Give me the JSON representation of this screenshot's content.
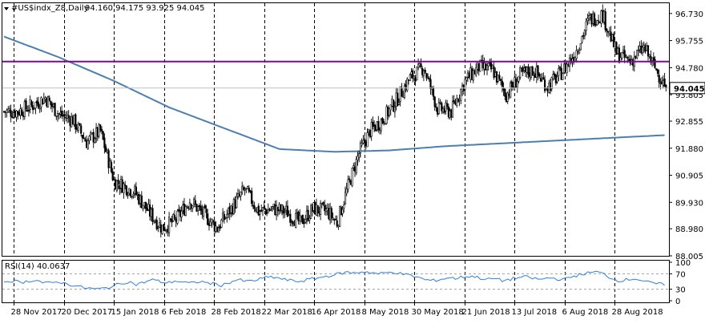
{
  "header": {
    "symbol_text": "#US$indx_Z8,Daily",
    "ohlc_text": "94.160 94.175 93.925 94.045"
  },
  "rsi_header": {
    "label": "RSI(14) 40.0637"
  },
  "colors": {
    "background": "#ffffff",
    "candle": "#000000",
    "ma_line": "#4a7fb0",
    "horizontal_line": "#7b0a8f",
    "current_price_line": "#c0c0c0",
    "rsi_line": "#2f7fe0",
    "grid": "#000000"
  },
  "chart_data": [
    {
      "type": "candlestick",
      "symbol": "#US$indx_Z8",
      "timeframe": "Daily",
      "last_price": 94.045,
      "last_price_label": "94.045",
      "ohlc_last": {
        "open": 94.16,
        "high": 94.175,
        "low": 93.925,
        "close": 94.045
      },
      "x_tick_labels": [
        "28 Nov 2017",
        "20 Dec 2017",
        "15 Jan 2018",
        "6 Feb 2018",
        "28 Feb 2018",
        "22 Mar 2018",
        "16 Apr 2018",
        "8 May 2018",
        "30 May 2018",
        "21 Jun 2018",
        "13 Jul 2018",
        "6 Aug 2018",
        "28 Aug 2018"
      ],
      "y_tick_labels": [
        "96.730",
        "95.755",
        "94.780",
        "93.805",
        "92.855",
        "91.880",
        "90.905",
        "89.930",
        "88.980",
        "88.005"
      ],
      "ylim": [
        88.005,
        97.1
      ],
      "grid": "vertical dashed",
      "horizontal_level": 95.0,
      "ma_series": {
        "x_index": [
          0,
          40,
          80,
          120,
          160,
          200,
          240,
          280,
          320,
          360,
          400,
          440,
          480
        ],
        "values": [
          95.9,
          95.15,
          94.3,
          93.35,
          92.6,
          91.85,
          91.75,
          91.8,
          91.95,
          92.05,
          92.15,
          92.25,
          92.35
        ]
      },
      "price_path": {
        "x_index": [
          0,
          10,
          20,
          30,
          40,
          50,
          60,
          70,
          80,
          88,
          95,
          105,
          115,
          125,
          135,
          145,
          155,
          165,
          175,
          185,
          195,
          205,
          215,
          225,
          235,
          242,
          250,
          258,
          266,
          275,
          285,
          295,
          305,
          315,
          325,
          335,
          345,
          355,
          365,
          375,
          385,
          395,
          405,
          415,
          425,
          435,
          445,
          455,
          465,
          475,
          481
        ],
        "values": [
          93.2,
          93.2,
          93.4,
          93.7,
          93.1,
          92.9,
          92.1,
          92.5,
          90.7,
          90.5,
          90.3,
          89.6,
          89.0,
          89.3,
          90.0,
          89.5,
          89.0,
          89.7,
          90.4,
          89.6,
          89.7,
          89.6,
          89.2,
          89.7,
          89.6,
          89.2,
          90.5,
          91.7,
          92.5,
          92.9,
          93.6,
          94.4,
          94.8,
          93.3,
          93.2,
          94.3,
          94.8,
          94.7,
          93.8,
          94.5,
          94.7,
          94.1,
          94.6,
          95.3,
          96.5,
          96.7,
          95.3,
          95.0,
          95.5,
          94.6,
          94.045
        ]
      }
    },
    {
      "type": "line",
      "name": "RSI(14)",
      "last_value": 40.0637,
      "y_tick_labels": [
        "100",
        "70",
        "30",
        "0"
      ],
      "ylim": [
        0,
        100
      ],
      "levels": [
        70,
        30
      ],
      "values": [
        50,
        52,
        48,
        50,
        55,
        47,
        45,
        50,
        44,
        40,
        35,
        32,
        30,
        33,
        38,
        45,
        50,
        42,
        48,
        55,
        50,
        46,
        52,
        48,
        45,
        50,
        47,
        44,
        40,
        48,
        55,
        50,
        52,
        57,
        62,
        60,
        55,
        52,
        50,
        55,
        58,
        62,
        66,
        70,
        74,
        72,
        76,
        74,
        70,
        72,
        75,
        70,
        66,
        62,
        55,
        52,
        55,
        60,
        58,
        62,
        64,
        60,
        55,
        58,
        52,
        56,
        60,
        62,
        58,
        55,
        60,
        57,
        55,
        63,
        68,
        72,
        75,
        70,
        58,
        52,
        55,
        58,
        52,
        46,
        44,
        40
      ]
    }
  ]
}
